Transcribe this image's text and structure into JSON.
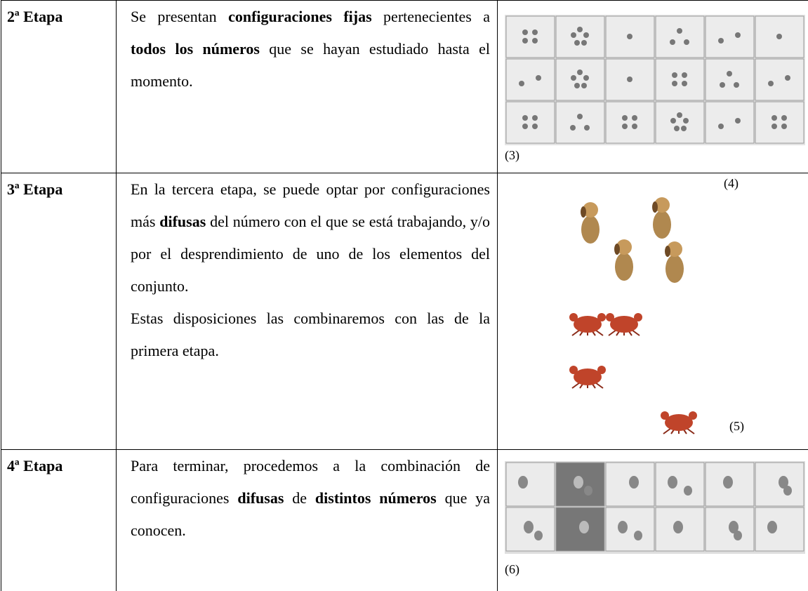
{
  "rows": [
    {
      "stage": "2ª Etapa",
      "paragraphs": [
        [
          {
            "text": "Se presentan ",
            "bold": false
          },
          {
            "text": "configuraciones fijas",
            "bold": true
          },
          {
            "text": " pertenecientes a ",
            "bold": false
          },
          {
            "text": "todos los números",
            "bold": true
          },
          {
            "text": " que se hayan estudiado hasta el momento.",
            "bold": false
          }
        ]
      ],
      "figure_labels": [
        "(3)"
      ]
    },
    {
      "stage": "3ª Etapa",
      "paragraphs": [
        [
          {
            "text": "En la tercera etapa, se puede optar por configuraciones más ",
            "bold": false
          },
          {
            "text": "difusas",
            "bold": true
          },
          {
            "text": " del número con el que se está trabajando, y/o por el desprendimiento de uno de los elementos del conjunto.",
            "bold": false
          }
        ],
        [
          {
            "text": "Estas disposiciones las combinaremos con las de la primera etapa.",
            "bold": false
          }
        ]
      ],
      "figure_labels": [
        "(4)",
        "(5)"
      ]
    },
    {
      "stage": "4ª Etapa",
      "paragraphs": [
        [
          {
            "text": "Para terminar, procedemos a la combinación de configuraciones ",
            "bold": false
          },
          {
            "text": "difusas",
            "bold": true
          },
          {
            "text": " de ",
            "bold": false
          },
          {
            "text": "distintos números",
            "bold": true
          },
          {
            "text": " que ya conocen.",
            "bold": false
          }
        ]
      ],
      "figure_labels": [
        "(6)"
      ]
    }
  ]
}
